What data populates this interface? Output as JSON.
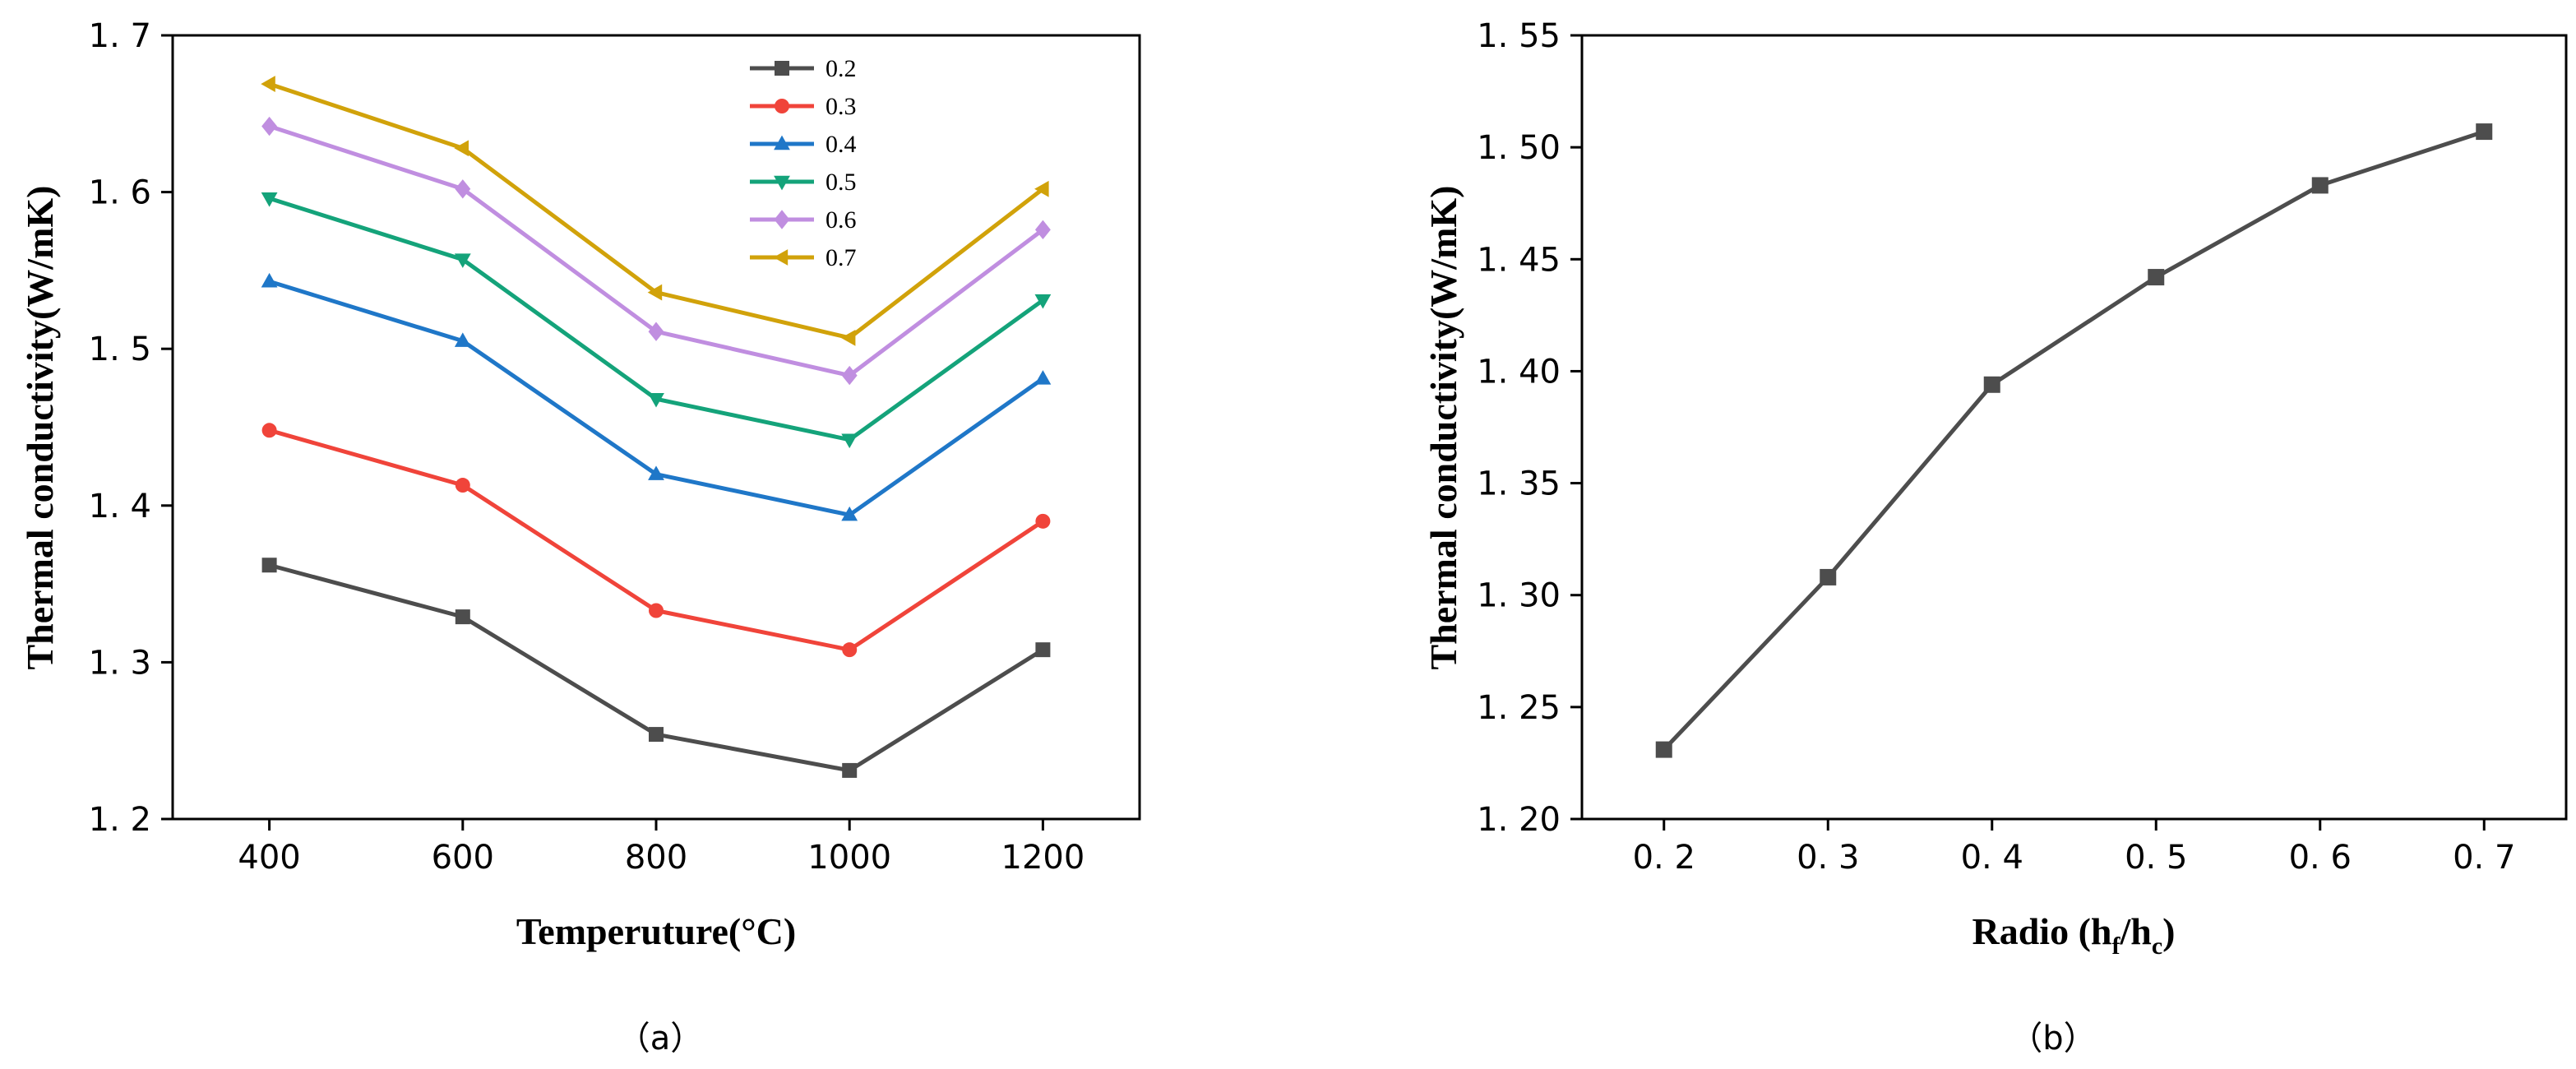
{
  "chart_data": [
    {
      "type": "line",
      "panel_label": "（a）",
      "xlabel": "Temperuture(°C)",
      "ylabel": "Thermal conductivity(W/mK)",
      "x": [
        400,
        600,
        800,
        1000,
        1200
      ],
      "xlim": [
        300,
        1300
      ],
      "ylim": [
        1.2,
        1.7
      ],
      "xticks": [
        400,
        600,
        800,
        1000,
        1200
      ],
      "yticks": [
        1.2,
        1.3,
        1.4,
        1.5,
        1.6,
        1.7
      ],
      "ytick_labels": [
        "1. 2",
        "1. 3",
        "1. 4",
        "1. 5",
        "1. 6",
        "1. 7"
      ],
      "legend_position": "top-center",
      "series": [
        {
          "name": "0.2",
          "color": "#4d4d4d",
          "marker": "square",
          "values": [
            1.362,
            1.329,
            1.254,
            1.231,
            1.308
          ]
        },
        {
          "name": "0.3",
          "color": "#f0443a",
          "marker": "circle",
          "values": [
            1.448,
            1.413,
            1.333,
            1.308,
            1.39
          ]
        },
        {
          "name": "0.4",
          "color": "#1f77c8",
          "marker": "triangle-up",
          "values": [
            1.543,
            1.505,
            1.42,
            1.394,
            1.481
          ]
        },
        {
          "name": "0.5",
          "color": "#14a37a",
          "marker": "triangle-down",
          "values": [
            1.596,
            1.557,
            1.468,
            1.442,
            1.531
          ]
        },
        {
          "name": "0.6",
          "color": "#c08ee0",
          "marker": "diamond",
          "values": [
            1.642,
            1.602,
            1.511,
            1.483,
            1.576
          ]
        },
        {
          "name": "0.7",
          "color": "#d1a20a",
          "marker": "triangle-left",
          "values": [
            1.669,
            1.628,
            1.536,
            1.507,
            1.602
          ]
        }
      ]
    },
    {
      "type": "line",
      "panel_label": "（b）",
      "xlabel_main": "Radio (h",
      "xlabel_sub1": "f",
      "xlabel_mid": "/h",
      "xlabel_sub2": "c",
      "xlabel_end": ")",
      "ylabel": "Thermal conductivity(W/mK)",
      "x": [
        0.2,
        0.3,
        0.4,
        0.5,
        0.6,
        0.7
      ],
      "xlim": [
        0.15,
        0.75
      ],
      "ylim": [
        1.2,
        1.55
      ],
      "xticks": [
        0.2,
        0.3,
        0.4,
        0.5,
        0.6,
        0.7
      ],
      "xtick_labels": [
        "0. 2",
        "0. 3",
        "0. 4",
        "0. 5",
        "0. 6",
        "0. 7"
      ],
      "yticks": [
        1.2,
        1.25,
        1.3,
        1.35,
        1.4,
        1.45,
        1.5,
        1.55
      ],
      "ytick_labels": [
        "1. 20",
        "1. 25",
        "1. 30",
        "1. 35",
        "1. 40",
        "1. 45",
        "1. 50",
        "1. 55"
      ],
      "series": [
        {
          "name": "Thermal conductivity",
          "color": "#4d4d4d",
          "marker": "square",
          "values": [
            1.231,
            1.308,
            1.394,
            1.442,
            1.483,
            1.507
          ]
        }
      ]
    }
  ]
}
